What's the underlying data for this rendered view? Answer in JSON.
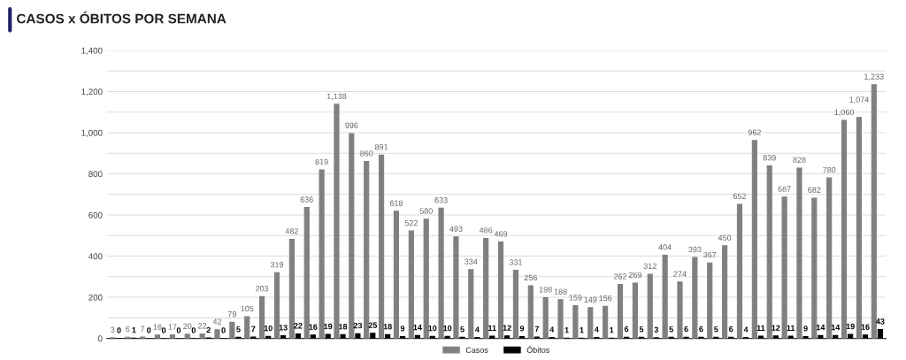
{
  "chart_data": {
    "type": "bar",
    "title": "CASOS x ÓBITOS POR SEMANA",
    "categories": [
      null,
      null,
      null,
      null,
      null,
      null,
      null,
      null,
      null,
      null,
      null,
      null,
      null,
      null,
      null,
      null,
      null,
      null,
      null,
      null,
      null,
      null,
      null,
      null,
      null,
      null,
      null,
      null,
      null,
      null,
      null,
      null,
      null,
      null,
      null,
      null,
      null,
      null,
      null,
      null,
      null,
      null,
      null,
      null,
      null,
      null,
      null,
      null,
      null,
      null,
      null,
      null
    ],
    "series": [
      {
        "name": "Casos",
        "color": "#808080",
        "values": [
          3,
          6,
          7,
          16,
          17,
          20,
          22,
          42,
          79,
          105,
          203,
          319,
          482,
          636,
          819,
          1138,
          996,
          860,
          891,
          618,
          522,
          580,
          633,
          493,
          334,
          486,
          469,
          331,
          256,
          198,
          188,
          159,
          149,
          156,
          262,
          269,
          312,
          404,
          274,
          393,
          367,
          450,
          652,
          962,
          839,
          687,
          828,
          682,
          780,
          1060,
          1074,
          1233
        ],
        "value_labels": [
          "3",
          "6",
          "7",
          "16",
          "17",
          "20",
          "22",
          "42",
          "79",
          "105",
          "203",
          "319",
          "482",
          "636",
          "819",
          "1,138",
          "996",
          "860",
          "891",
          "618",
          "522",
          "580",
          "633",
          "493",
          "334",
          "486",
          "469",
          "331",
          "256",
          "198",
          "188",
          "159",
          "149",
          "156",
          "262",
          "269",
          "312",
          "404",
          "274",
          "393",
          "367",
          "450",
          "652",
          "962",
          "839",
          "687",
          "828",
          "682",
          "780",
          "1,060",
          "1,074",
          "1,233"
        ]
      },
      {
        "name": "Óbitos",
        "color": "#000000",
        "values": [
          0,
          1,
          0,
          0,
          0,
          0,
          2,
          0,
          5,
          7,
          10,
          13,
          22,
          16,
          19,
          18,
          23,
          25,
          18,
          9,
          14,
          10,
          10,
          5,
          4,
          11,
          12,
          9,
          7,
          4,
          1,
          1,
          4,
          1,
          6,
          5,
          3,
          5,
          6,
          6,
          5,
          6,
          4,
          11,
          12,
          11,
          9,
          14,
          14,
          19,
          16,
          43
        ],
        "value_labels": [
          "0",
          "1",
          "0",
          "0",
          "0",
          "0",
          "2",
          "0",
          "5",
          "7",
          "10",
          "13",
          "22",
          "16",
          "19",
          "18",
          "23",
          "25",
          "18",
          "9",
          "14",
          "10",
          "10",
          "5",
          "4",
          "11",
          "12",
          "9",
          "7",
          "4",
          "1",
          "1",
          "4",
          "1",
          "6",
          "5",
          "3",
          "5",
          "6",
          "6",
          "5",
          "6",
          "4",
          "11",
          "12",
          "11",
          "9",
          "14",
          "14",
          "19",
          "16",
          "43"
        ]
      }
    ],
    "ylim": [
      0,
      1400
    ],
    "yticks": [
      0,
      {
        "value": 100,
        "label": null
      },
      {
        "value": 200,
        "label": "200"
      },
      {
        "value": 300,
        "label": null
      },
      {
        "value": 400,
        "label": "400"
      },
      {
        "value": 500,
        "label": null
      },
      {
        "value": 600,
        "label": "600"
      },
      {
        "value": 700,
        "label": null
      },
      {
        "value": 800,
        "label": "800"
      },
      {
        "value": 900,
        "label": null
      },
      {
        "value": 1000,
        "label": "1,000"
      },
      {
        "value": 1100,
        "label": null
      },
      {
        "value": 1200,
        "label": "1,200"
      },
      {
        "value": 1300,
        "label": null
      },
      {
        "value": 1400,
        "label": "1,400"
      }
    ],
    "grid": "y",
    "legend": "bottom",
    "tick_labels": "y"
  }
}
